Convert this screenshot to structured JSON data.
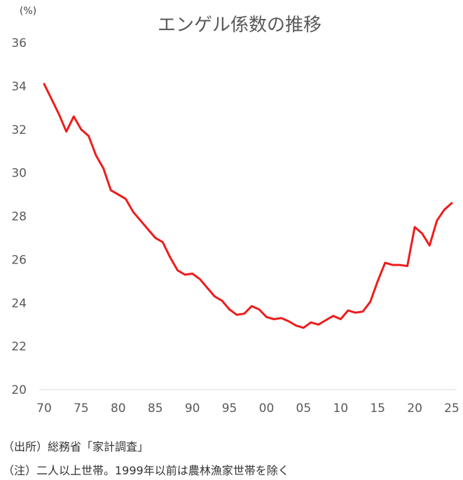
{
  "chart_data": {
    "type": "line",
    "title": "エンゲル係数の推移",
    "ylabel": "(%)",
    "xlabel": "",
    "ylim": [
      20,
      36
    ],
    "yticks": [
      20,
      22,
      24,
      26,
      28,
      30,
      32,
      34,
      36
    ],
    "xlim": [
      1970,
      2025
    ],
    "xtick_values": [
      1970,
      1975,
      1980,
      1985,
      1990,
      1995,
      2000,
      2005,
      2010,
      2015,
      2020,
      2025
    ],
    "xtick_labels": [
      "70",
      "75",
      "80",
      "85",
      "90",
      "95",
      "00",
      "05",
      "10",
      "15",
      "20",
      "25"
    ],
    "grid": false,
    "series": [
      {
        "name": "エンゲル係数",
        "color": "#ee1c1c",
        "x": [
          1970,
          1971,
          1972,
          1973,
          1974,
          1975,
          1976,
          1977,
          1978,
          1979,
          1980,
          1981,
          1982,
          1983,
          1984,
          1985,
          1986,
          1987,
          1988,
          1989,
          1990,
          1991,
          1992,
          1993,
          1994,
          1995,
          1996,
          1997,
          1998,
          1999,
          2000,
          2001,
          2002,
          2003,
          2004,
          2005,
          2006,
          2007,
          2008,
          2009,
          2010,
          2011,
          2012,
          2013,
          2014,
          2015,
          2016,
          2017,
          2018,
          2019,
          2020,
          2021,
          2022,
          2023,
          2024,
          2025
        ],
        "values": [
          34.1,
          33.4,
          32.7,
          31.9,
          32.6,
          32.0,
          31.7,
          30.8,
          30.2,
          29.2,
          29.0,
          28.8,
          28.2,
          27.8,
          27.4,
          27.0,
          26.8,
          26.1,
          25.5,
          25.3,
          25.35,
          25.1,
          24.7,
          24.3,
          24.1,
          23.7,
          23.45,
          23.5,
          23.85,
          23.7,
          23.35,
          23.25,
          23.3,
          23.15,
          22.95,
          22.85,
          23.1,
          23.0,
          23.2,
          23.4,
          23.25,
          23.65,
          23.55,
          23.6,
          24.05,
          25.0,
          25.85,
          25.75,
          25.75,
          25.7,
          27.5,
          27.2,
          26.65,
          27.8,
          28.3,
          28.6
        ]
      }
    ]
  },
  "notes": {
    "source": "（出所）総務省「家計調査」",
    "note": "（注）二人以上世帯。1999年以前は農林漁家世帯を除く"
  }
}
